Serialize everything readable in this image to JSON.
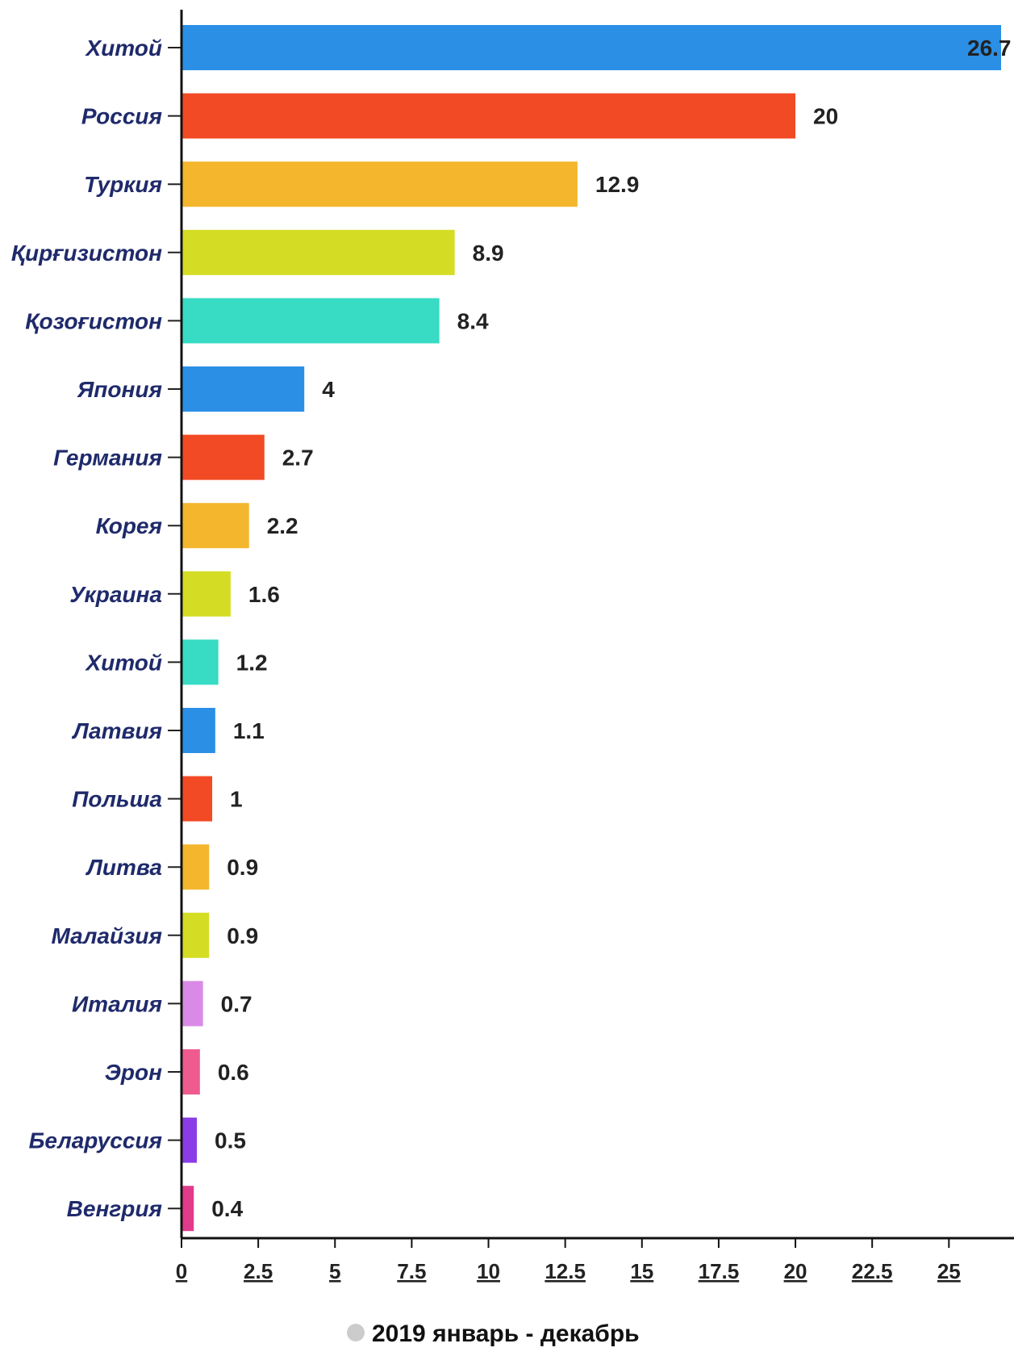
{
  "chart_data": {
    "type": "bar",
    "orientation": "horizontal",
    "categories": [
      "Хитой",
      "Россия",
      "Туркия",
      "Қирғизистон",
      "Қозоғистон",
      "Япония",
      "Германия",
      "Корея",
      "Украина",
      "Хитой",
      "Латвия",
      "Польша",
      "Литва",
      "Малайзия",
      "Италия",
      "Эрон",
      "Беларуссия",
      "Венгрия"
    ],
    "series": [
      {
        "name": "2019 январь - декабрь",
        "values": [
          26.7,
          20,
          12.9,
          8.9,
          8.4,
          4,
          2.7,
          2.2,
          1.6,
          1.2,
          1.1,
          1,
          0.9,
          0.9,
          0.7,
          0.6,
          0.5,
          0.4
        ],
        "labels": [
          "26.7",
          "20",
          "12.9",
          "8.9",
          "8.4",
          "4",
          "2.7",
          "2.2",
          "1.6",
          "1.2",
          "1.1",
          "1",
          "0.9",
          "0.9",
          "0.7",
          "0.6",
          "0.5",
          "0.4"
        ],
        "colors": [
          "#2b8fe6",
          "#f24a24",
          "#f4b62c",
          "#d4dd24",
          "#38dbc4",
          "#2b8fe6",
          "#f24a24",
          "#f4b62c",
          "#d4dd24",
          "#38dbc4",
          "#2b8fe6",
          "#f24a24",
          "#f4b62c",
          "#d4dd24",
          "#d98ae6",
          "#ef5b8f",
          "#8a3ce6",
          "#e23a8a"
        ]
      }
    ],
    "xlim": [
      0,
      26.7
    ],
    "xticks": [
      "0",
      "2.5",
      "5",
      "7.5",
      "10",
      "12.5",
      "15",
      "17.5",
      "20",
      "22.5",
      "25"
    ],
    "xtick_values": [
      0,
      2.5,
      5,
      7.5,
      10,
      12.5,
      15,
      17.5,
      20,
      22.5,
      25
    ],
    "legend": {
      "label": "2019 январь - декабрь",
      "marker_color": "#cccccc",
      "placement": "bottom-center"
    },
    "grid": false
  }
}
